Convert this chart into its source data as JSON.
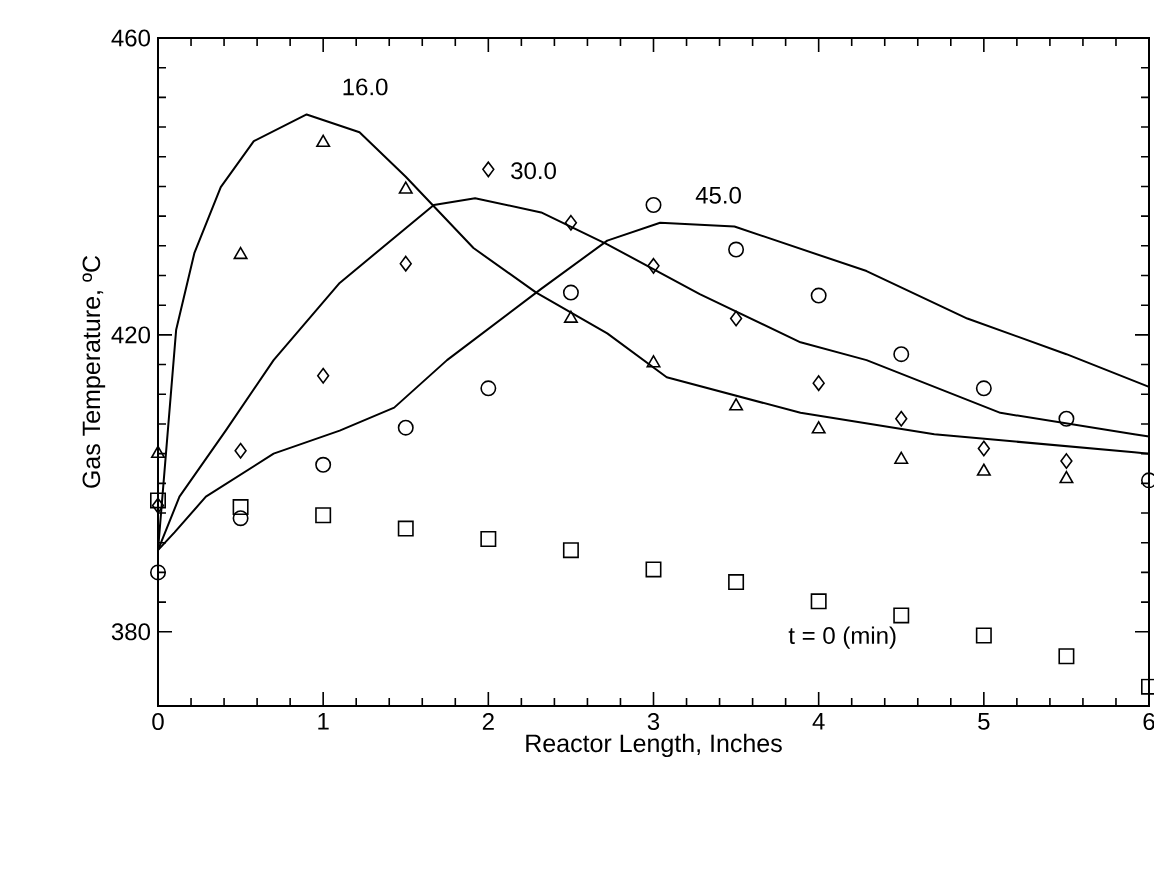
{
  "chart_data": {
    "type": "scatter",
    "xlabel": "Reactor Length, Inches",
    "ylabel": "Gas Temperature, ºC",
    "xlim": [
      0,
      6
    ],
    "ylim": [
      370,
      460
    ],
    "xticks": [
      0,
      1,
      2,
      3,
      4,
      5,
      6
    ],
    "yticks": [
      380,
      420,
      460
    ],
    "grid": false,
    "series": [
      {
        "name": "t = 0 (min)",
        "marker": "square",
        "color": "#000000",
        "x": [
          0,
          0.5,
          1,
          1.5,
          2,
          2.5,
          3,
          3.5,
          4,
          4.5,
          5,
          5.5,
          6
        ],
        "values": [
          397.7,
          396.8,
          395.7,
          393.9,
          392.5,
          391,
          388.4,
          386.7,
          384.1,
          382.2,
          379.5,
          376.7,
          372.6
        ]
      },
      {
        "marker": "triangle",
        "color": "#000000",
        "x": [
          0,
          0.5,
          1,
          1.5,
          2.5,
          3,
          3.5,
          4,
          4.5,
          5,
          5.5
        ],
        "values": [
          404,
          430.8,
          445.9,
          439.6,
          422.2,
          416.2,
          410.4,
          407.3,
          403.2,
          401.6,
          400.6
        ]
      },
      {
        "marker": "diamond",
        "color": "#000000",
        "x": [
          0,
          0.5,
          1,
          1.5,
          2,
          2.5,
          3,
          3.5,
          4,
          4.5,
          5,
          5.5
        ],
        "values": [
          397,
          404.4,
          414.5,
          429.6,
          442.3,
          435.1,
          429.3,
          422.2,
          413.5,
          408.7,
          404.7,
          403
        ]
      },
      {
        "marker": "circle",
        "color": "#000000",
        "x": [
          0,
          0.5,
          1,
          1.5,
          2,
          2.5,
          3,
          3.5,
          4,
          4.5,
          5,
          5.5,
          6
        ],
        "values": [
          388,
          395.3,
          402.5,
          407.5,
          412.8,
          425.7,
          437.5,
          431.5,
          425.3,
          417.4,
          412.8,
          408.7,
          400.4
        ]
      },
      {
        "name": "16.0",
        "type": "line",
        "marker": "none",
        "line_style": "solid",
        "color": "#000000",
        "x": [
          0,
          0.11,
          0.22,
          0.38,
          0.58,
          0.9,
          1.22,
          1.5,
          1.91,
          2.29,
          2.72,
          3.08,
          3.89,
          4.7,
          5.91,
          6
        ],
        "values": [
          391,
          420.7,
          431,
          439.9,
          446.1,
          449.7,
          447.3,
          441.3,
          431.7,
          425.7,
          420.2,
          414.3,
          409.5,
          406.6,
          404.2,
          404
        ]
      },
      {
        "name": "30.0",
        "type": "line",
        "marker": "none",
        "line_style": "solid",
        "color": "#000000",
        "x": [
          0,
          0.13,
          0.41,
          0.7,
          1.1,
          1.67,
          1.92,
          2.32,
          2.72,
          3.28,
          3.89,
          4.29,
          5.1,
          5.91,
          6
        ],
        "values": [
          391,
          398.2,
          407.1,
          416.6,
          427,
          437.5,
          438.4,
          436.5,
          432.2,
          425.5,
          419,
          416.6,
          409.5,
          406.6,
          406.3
        ]
      },
      {
        "name": "45.0",
        "type": "line",
        "marker": "none",
        "line_style": "solid",
        "color": "#000000",
        "x": [
          0,
          0.1,
          0.29,
          0.7,
          1.1,
          1.43,
          1.75,
          2.32,
          2.72,
          3.04,
          3.49,
          4.29,
          4.9,
          5.5,
          6
        ],
        "values": [
          391,
          393.4,
          398.2,
          404,
          407.1,
          410.2,
          416.6,
          426.2,
          432.7,
          435.1,
          434.6,
          428.6,
          422.2,
          417.4,
          413
        ]
      }
    ]
  }
}
